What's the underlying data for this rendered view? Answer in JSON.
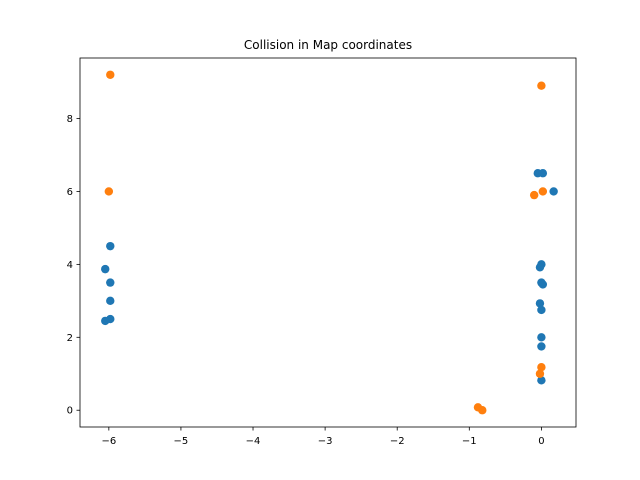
{
  "chart_data": {
    "type": "scatter",
    "title": "Collision in Map coordinates",
    "xlabel": "",
    "ylabel": "",
    "xlim": [
      -6.4,
      0.48
    ],
    "ylim": [
      -0.46,
      9.66
    ],
    "xticks": [
      -6,
      -5,
      -4,
      -3,
      -2,
      -1,
      0
    ],
    "yticks": [
      0,
      2,
      4,
      6,
      8
    ],
    "xtick_labels": [
      "−6",
      "−5",
      "−4",
      "−3",
      "−2",
      "−1",
      "0"
    ],
    "ytick_labels": [
      "0",
      "2",
      "4",
      "6",
      "8"
    ],
    "grid": false,
    "series": [
      {
        "color": "#1f77b4",
        "points": [
          [
            -5.98,
            4.5
          ],
          [
            -6.05,
            3.87
          ],
          [
            -5.98,
            3.5
          ],
          [
            -5.98,
            3.0
          ],
          [
            -5.98,
            2.5
          ],
          [
            -6.05,
            2.45
          ],
          [
            -0.05,
            6.5
          ],
          [
            0.02,
            6.5
          ],
          [
            0.17,
            6.0
          ],
          [
            0.0,
            4.0
          ],
          [
            -0.02,
            3.92
          ],
          [
            0.0,
            3.5
          ],
          [
            0.02,
            3.45
          ],
          [
            -0.02,
            2.93
          ],
          [
            0.0,
            2.75
          ],
          [
            0.0,
            2.0
          ],
          [
            0.0,
            1.75
          ],
          [
            0.0,
            0.82
          ]
        ]
      },
      {
        "color": "#ff7f0e",
        "points": [
          [
            -5.98,
            9.2
          ],
          [
            -6.0,
            6.0
          ],
          [
            0.0,
            8.9
          ],
          [
            0.02,
            6.0
          ],
          [
            -0.1,
            5.9
          ],
          [
            0.0,
            1.18
          ],
          [
            -0.02,
            1.0
          ],
          [
            -0.88,
            0.08
          ],
          [
            -0.82,
            0.0
          ]
        ]
      }
    ]
  }
}
